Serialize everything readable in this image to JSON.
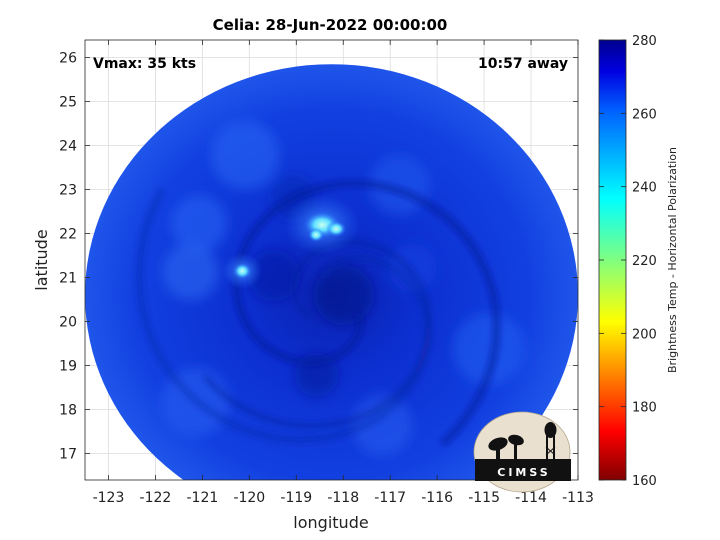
{
  "map": {
    "title": "Celia: 28-Jun-2022 00:00:00",
    "vmax_label": "Vmax: 35 kts",
    "time_away_label": "10:57 away",
    "xlabel": "longitude",
    "ylabel": "latitude",
    "lon_range": [
      -123.5,
      -113
    ],
    "lat_range": [
      16.4,
      26.4
    ],
    "lon_ticks": [
      -123,
      -122,
      -121,
      -120,
      -119,
      -118,
      -117,
      -116,
      -115,
      -114,
      -113
    ],
    "lat_ticks": [
      17,
      18,
      19,
      20,
      21,
      22,
      23,
      24,
      25,
      26
    ],
    "grid": true,
    "swath_center": {
      "lon": -118.25,
      "lat": 20.6
    },
    "swath_radius_deg": 5.25,
    "features": [
      {
        "name": "warm-core-spot-west",
        "lon": -120.15,
        "lat": 21.15,
        "tb": 238
      },
      {
        "name": "warm-core-spot-north",
        "lon": -118.45,
        "lat": 22.2,
        "tb": 240
      }
    ]
  },
  "colorbar": {
    "label": "Brightness Temp - Horizontal Polarization",
    "range": [
      160,
      280
    ],
    "ticks": [
      160,
      180,
      200,
      220,
      240,
      260,
      280
    ],
    "colors": [
      "#7f0000",
      "#ff0000",
      "#ff8000",
      "#ffff00",
      "#80ff80",
      "#00ffff",
      "#0080ff",
      "#0000ff",
      "#00008f"
    ]
  },
  "logo": {
    "text": "CIMSS"
  }
}
